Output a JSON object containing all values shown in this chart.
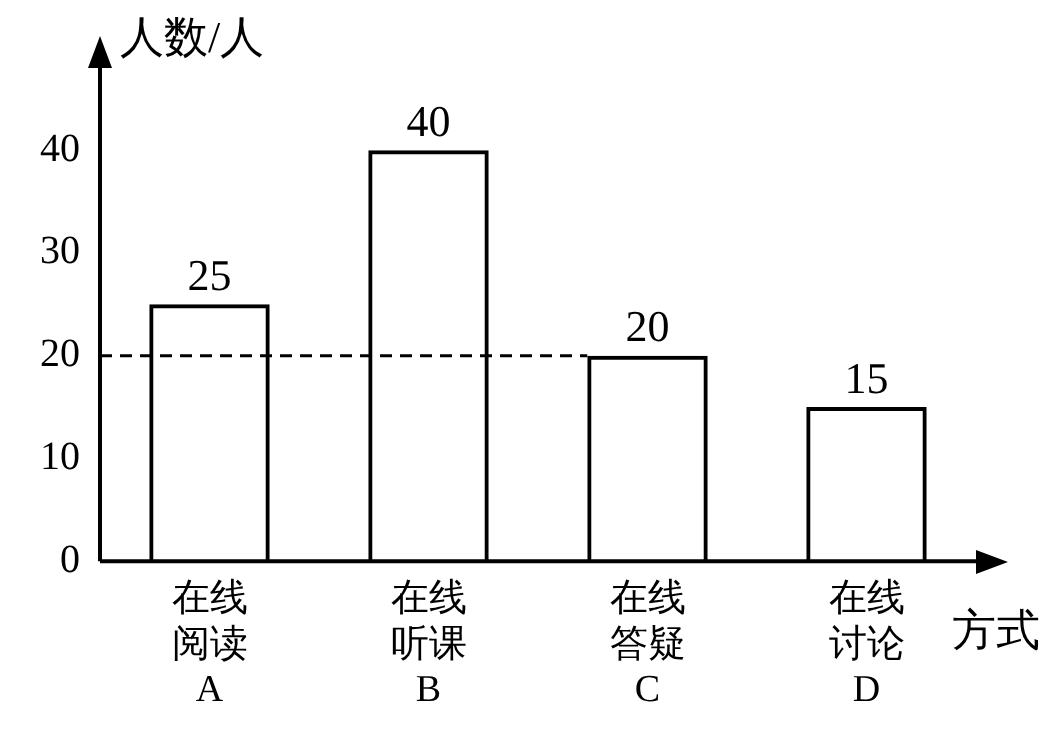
{
  "chart_data": {
    "type": "bar",
    "ylabel": "人数/人",
    "xlabel": "方式",
    "categories": [
      "在线阅读A",
      "在线听课B",
      "在线答疑C",
      "在线讨论D"
    ],
    "values": [
      25,
      40,
      20,
      15
    ],
    "color": "#000000",
    "data_labels": true,
    "ylim": [
      0,
      48
    ],
    "yticks": [
      0,
      10,
      20,
      30,
      40
    ],
    "grid": false,
    "legend": false,
    "ref_lines": [
      {
        "axis": "y",
        "value": 20,
        "line_style": "dashed",
        "color": "#000000"
      }
    ]
  }
}
